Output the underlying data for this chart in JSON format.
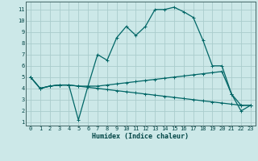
{
  "xlabel": "Humidex (Indice chaleur)",
  "xlim": [
    -0.5,
    23.5
  ],
  "ylim": [
    0.7,
    11.7
  ],
  "yticks": [
    1,
    2,
    3,
    4,
    5,
    6,
    7,
    8,
    9,
    10,
    11
  ],
  "xticks": [
    0,
    1,
    2,
    3,
    4,
    5,
    6,
    7,
    8,
    9,
    10,
    11,
    12,
    13,
    14,
    15,
    16,
    17,
    18,
    19,
    20,
    21,
    22,
    23
  ],
  "bg_color": "#cce8e8",
  "grid_color": "#aacccc",
  "line_color": "#006666",
  "line1_x": [
    0,
    1,
    2,
    3,
    4,
    5,
    6,
    7,
    8,
    9,
    10,
    11,
    12,
    13,
    14,
    15,
    16,
    17,
    18,
    19,
    20,
    21,
    22,
    23
  ],
  "line1_y": [
    5.0,
    4.0,
    4.2,
    4.3,
    4.3,
    1.2,
    4.2,
    7.0,
    6.5,
    8.5,
    9.5,
    8.7,
    9.5,
    11.0,
    11.0,
    11.2,
    10.8,
    10.3,
    8.3,
    6.0,
    6.0,
    3.5,
    2.0,
    2.5
  ],
  "line2_x": [
    0,
    1,
    2,
    3,
    4,
    5,
    6,
    7,
    8,
    9,
    10,
    11,
    12,
    13,
    14,
    15,
    16,
    17,
    18,
    19,
    20,
    21,
    22,
    23
  ],
  "line2_y": [
    5.0,
    4.0,
    4.2,
    4.3,
    4.3,
    4.2,
    4.2,
    4.2,
    4.3,
    4.4,
    4.5,
    4.6,
    4.7,
    4.8,
    4.9,
    5.0,
    5.1,
    5.2,
    5.3,
    5.4,
    5.5,
    3.5,
    2.5,
    2.5
  ],
  "line3_x": [
    0,
    1,
    2,
    3,
    4,
    5,
    6,
    7,
    8,
    9,
    10,
    11,
    12,
    13,
    14,
    15,
    16,
    17,
    18,
    19,
    20,
    21,
    22,
    23
  ],
  "line3_y": [
    5.0,
    4.0,
    4.2,
    4.3,
    4.3,
    4.2,
    4.1,
    4.0,
    3.9,
    3.8,
    3.7,
    3.6,
    3.5,
    3.4,
    3.3,
    3.2,
    3.1,
    3.0,
    2.9,
    2.8,
    2.7,
    2.6,
    2.5,
    2.5
  ],
  "tick_fontsize": 5.0,
  "xlabel_fontsize": 6.0,
  "line_width": 0.9,
  "marker_size": 2.5
}
